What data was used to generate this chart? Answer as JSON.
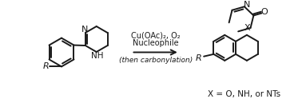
{
  "bg_color": "#ffffff",
  "line_color": "#1a1a1a",
  "line_width": 1.4,
  "arrow_text_line1": "Cu(OAc)₂, O₂",
  "arrow_text_line2": "Nucleophile",
  "arrow_text_line3": "(then carbonylation)",
  "label_x": "X = O, NH, or NTs",
  "figsize": [
    3.78,
    1.29
  ],
  "dpi": 100
}
